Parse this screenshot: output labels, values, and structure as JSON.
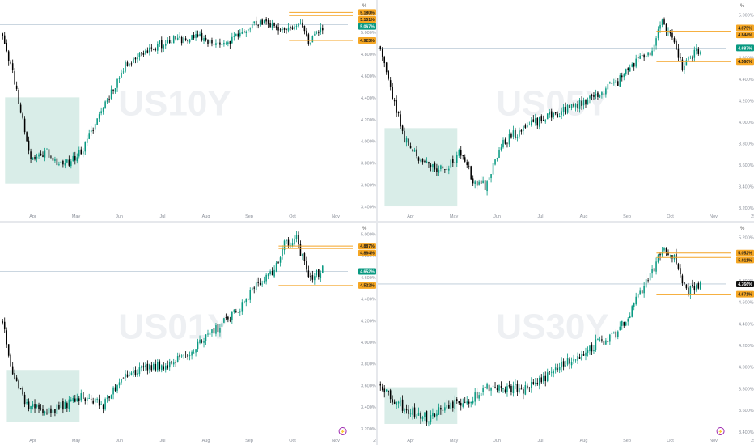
{
  "colors": {
    "up": "#089981",
    "down": "#000000",
    "zone": "#cfe9e2",
    "level": "#f4a426",
    "badge_orange": "#f5a623",
    "badge_green": "#089981",
    "badge_black": "#111111",
    "ref_line": "#b9c9d6",
    "axis_text": "#8a8f99",
    "watermark": "#eef0f3"
  },
  "chart_data": [
    {
      "type": "candlestick",
      "watermark": "US10Y",
      "x_labels": [
        "Apr",
        "May",
        "Jun",
        "Jul",
        "Aug",
        "Sep",
        "Oct",
        "Nov"
      ],
      "y_unit": "%",
      "y_ticks": [
        "5.000%",
        "4.800%",
        "4.600%",
        "4.400%",
        "4.200%",
        "4.000%",
        "3.800%",
        "3.600%",
        "3.400%"
      ],
      "ylim": [
        3.37,
        5.22
      ],
      "series": {
        "start": 4.98,
        "steps": 160,
        "seed": 11,
        "anchors": [
          [
            0,
            4.98
          ],
          [
            6,
            4.55
          ],
          [
            14,
            3.83
          ],
          [
            22,
            3.9
          ],
          [
            30,
            3.76
          ],
          [
            40,
            3.92
          ],
          [
            50,
            4.32
          ],
          [
            62,
            4.72
          ],
          [
            74,
            4.86
          ],
          [
            86,
            4.93
          ],
          [
            98,
            4.95
          ],
          [
            110,
            4.87
          ],
          [
            122,
            5.06
          ],
          [
            132,
            5.08
          ],
          [
            140,
            5.02
          ],
          [
            148,
            5.07
          ],
          [
            152,
            4.91
          ],
          [
            159,
            5.05
          ]
        ],
        "vol": 0.035
      },
      "zone": {
        "x_from": 0.01,
        "x_to": 0.225,
        "y_from": 3.61,
        "y_to": 4.4
      },
      "levels": [
        5.18,
        5.151,
        4.923
      ],
      "level_from": 0.83,
      "ref_level": 5.067,
      "badges": [
        {
          "value": 5.18,
          "text": "5.180%",
          "kind": "orange"
        },
        {
          "value": 5.151,
          "text": "5.151%",
          "kind": "orange"
        },
        {
          "value": 5.067,
          "text": "5.067%",
          "kind": "green"
        },
        {
          "value": 4.923,
          "text": "4.923%",
          "kind": "orange"
        }
      ],
      "icon": false
    },
    {
      "type": "candlestick",
      "watermark": "US05Y",
      "x_labels": [
        "Apr",
        "May",
        "Jun",
        "Jul",
        "Aug",
        "Sep",
        "Oct",
        "Nov",
        "25"
      ],
      "y_unit": "%",
      "y_ticks": [
        "5.000%",
        "4.800%",
        "4.600%",
        "4.400%",
        "4.200%",
        "4.000%",
        "3.800%",
        "3.600%",
        "3.400%",
        "3.200%"
      ],
      "ylim": [
        3.18,
        5.06
      ],
      "series": {
        "start": 4.7,
        "steps": 160,
        "seed": 23,
        "anchors": [
          [
            0,
            4.7
          ],
          [
            5,
            4.3
          ],
          [
            12,
            3.85
          ],
          [
            22,
            3.6
          ],
          [
            32,
            3.55
          ],
          [
            40,
            3.72
          ],
          [
            46,
            3.45
          ],
          [
            52,
            3.4
          ],
          [
            60,
            3.8
          ],
          [
            72,
            3.95
          ],
          [
            84,
            4.05
          ],
          [
            96,
            4.14
          ],
          [
            108,
            4.26
          ],
          [
            118,
            4.38
          ],
          [
            126,
            4.55
          ],
          [
            134,
            4.62
          ],
          [
            140,
            4.93
          ],
          [
            145,
            4.8
          ],
          [
            150,
            4.52
          ],
          [
            159,
            4.69
          ]
        ],
        "vol": 0.04
      },
      "zone": {
        "x_from": 0.015,
        "x_to": 0.225,
        "y_from": 3.21,
        "y_to": 3.94
      },
      "levels": [
        4.875,
        4.844,
        4.56
      ],
      "level_from": 0.8,
      "ref_level": 4.687,
      "badges": [
        {
          "value": 4.875,
          "text": "4.875%",
          "kind": "orange"
        },
        {
          "value": 4.844,
          "text": "4.844%",
          "kind": "orange"
        },
        {
          "value": 4.687,
          "text": "4.687%",
          "kind": "green"
        },
        {
          "value": 4.56,
          "text": "4.560%",
          "kind": "orange"
        }
      ],
      "icon": false
    },
    {
      "type": "candlestick",
      "watermark": "US01Y",
      "x_labels": [
        "Apr",
        "May",
        "Jun",
        "Jul",
        "Aug",
        "Sep",
        "Oct",
        "Nov",
        "25"
      ],
      "y_unit": "%",
      "y_ticks": [
        "5.000%",
        "4.800%",
        "4.600%",
        "4.400%",
        "4.200%",
        "4.000%",
        "3.800%",
        "3.600%",
        "3.400%",
        "3.200%"
      ],
      "ylim": [
        3.15,
        5.03
      ],
      "series": {
        "start": 4.2,
        "steps": 160,
        "seed": 37,
        "anchors": [
          [
            0,
            4.2
          ],
          [
            5,
            3.72
          ],
          [
            12,
            3.42
          ],
          [
            24,
            3.35
          ],
          [
            34,
            3.45
          ],
          [
            42,
            3.5
          ],
          [
            50,
            3.4
          ],
          [
            60,
            3.7
          ],
          [
            72,
            3.75
          ],
          [
            84,
            3.8
          ],
          [
            96,
            3.95
          ],
          [
            108,
            4.15
          ],
          [
            118,
            4.3
          ],
          [
            126,
            4.55
          ],
          [
            134,
            4.62
          ],
          [
            140,
            4.92
          ],
          [
            146,
            4.95
          ],
          [
            152,
            4.6
          ],
          [
            159,
            4.66
          ]
        ],
        "vol": 0.04
      },
      "zone": {
        "x_from": 0.015,
        "x_to": 0.225,
        "y_from": 3.26,
        "y_to": 3.74
      },
      "levels": [
        4.887,
        4.864,
        4.522
      ],
      "level_from": 0.8,
      "ref_level": 4.652,
      "badges": [
        {
          "value": 4.887,
          "text": "4.887%",
          "kind": "orange"
        },
        {
          "value": 4.864,
          "text": "4.864%",
          "kind": "orange"
        },
        {
          "value": 4.652,
          "text": "4.652%",
          "kind": "green"
        },
        {
          "value": 4.522,
          "text": "4.522%",
          "kind": "orange"
        }
      ],
      "icon": true
    },
    {
      "type": "candlestick",
      "watermark": "US30Y",
      "x_labels": [
        "Apr",
        "May",
        "Jun",
        "Jul",
        "Aug",
        "Sep",
        "Oct",
        "Nov",
        "25"
      ],
      "y_unit": "%",
      "y_ticks": [
        "5.200%",
        "5.000%",
        "4.800%",
        "4.600%",
        "4.400%",
        "4.200%",
        "4.000%",
        "3.800%",
        "3.600%",
        "3.400%"
      ],
      "ylim": [
        3.38,
        5.26
      ],
      "series": {
        "start": 3.85,
        "steps": 160,
        "seed": 53,
        "anchors": [
          [
            0,
            3.85
          ],
          [
            6,
            3.7
          ],
          [
            14,
            3.6
          ],
          [
            24,
            3.52
          ],
          [
            34,
            3.66
          ],
          [
            44,
            3.7
          ],
          [
            54,
            3.82
          ],
          [
            64,
            3.8
          ],
          [
            72,
            3.78
          ],
          [
            80,
            3.88
          ],
          [
            90,
            4.02
          ],
          [
            100,
            4.12
          ],
          [
            108,
            4.22
          ],
          [
            116,
            4.28
          ],
          [
            124,
            4.5
          ],
          [
            132,
            4.78
          ],
          [
            140,
            5.08
          ],
          [
            146,
            5.0
          ],
          [
            152,
            4.7
          ],
          [
            159,
            4.74
          ]
        ],
        "vol": 0.045
      },
      "zone": {
        "x_from": 0.015,
        "x_to": 0.225,
        "y_from": 3.47,
        "y_to": 3.81
      },
      "levels": [
        5.052,
        5.011,
        4.671
      ],
      "level_from": 0.8,
      "ref_level": 4.766,
      "badges": [
        {
          "value": 5.052,
          "text": "5.052%",
          "kind": "orange"
        },
        {
          "value": 5.011,
          "text": "5.011%",
          "kind": "orange"
        },
        {
          "value": 4.766,
          "text": "4.766%",
          "kind": "black"
        },
        {
          "value": 4.671,
          "text": "4.671%",
          "kind": "orange"
        }
      ],
      "icon": true
    }
  ]
}
